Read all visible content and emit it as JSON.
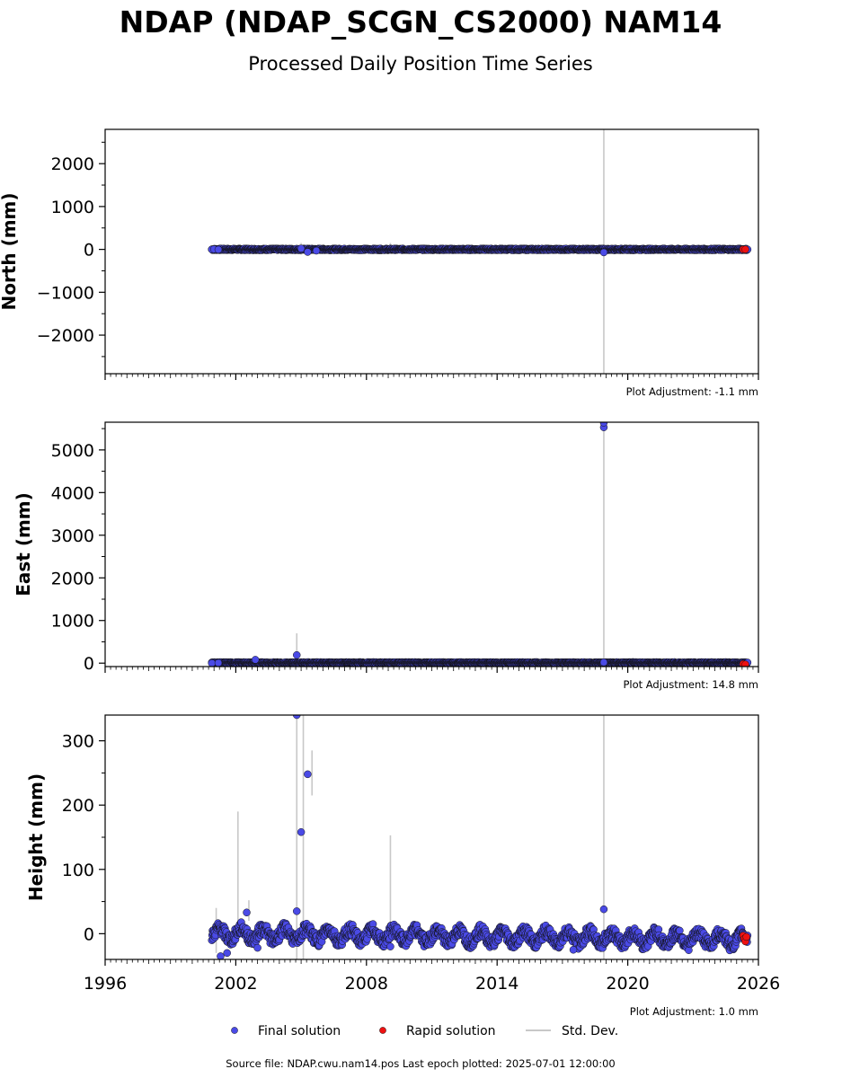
{
  "title": "NDAP (NDAP_SCGN_CS2000) NAM14",
  "subtitle": "Processed Daily Position Time Series",
  "footer": "Source file: NDAP.cwu.nam14.pos  Last epoch plotted: 2025-07-01 12:00:00",
  "legend": {
    "final": "Final solution",
    "rapid": "Rapid solution",
    "std": "Std. Dev."
  },
  "colors": {
    "final": "#4a4ae6",
    "rapid": "#ee1111",
    "std": "#c8c8c8",
    "dense_band": "#1a1a4a"
  },
  "chart_data": [
    {
      "type": "scatter",
      "ylabel": "North (mm)",
      "adjustment": "Plot Adjustment: -1.1 mm",
      "xlim": [
        1996,
        2026
      ],
      "ylim": [
        -2900,
        2800
      ],
      "yticks": [
        {
          "v": 2000,
          "label": "2000"
        },
        {
          "v": 1000,
          "label": "1000"
        },
        {
          "v": 0,
          "label": "0"
        },
        {
          "v": -1000,
          "label": "−1000"
        },
        {
          "v": -2000,
          "label": "−2000"
        }
      ],
      "band": [
        {
          "x0": 2000.9,
          "x1": 2025.5,
          "y": 0
        }
      ],
      "final_points": [
        {
          "x": 2000.9,
          "y": 0
        },
        {
          "x": 2001.0,
          "y": 5
        },
        {
          "x": 2001.2,
          "y": -5
        },
        {
          "x": 2005.0,
          "y": 20
        },
        {
          "x": 2005.3,
          "y": -60
        },
        {
          "x": 2005.7,
          "y": -30
        },
        {
          "x": 2018.9,
          "y": -70
        }
      ],
      "rapid_points": [
        {
          "x": 2025.3,
          "y": 0
        },
        {
          "x": 2025.4,
          "y": 0
        }
      ],
      "std_bars": [
        {
          "x": 2018.9,
          "y0": -2900,
          "y1": 2800
        },
        {
          "x": 2005.0,
          "y0": -120,
          "y1": 150
        },
        {
          "x": 2009.1,
          "y0": -20,
          "y1": 150
        }
      ]
    },
    {
      "type": "scatter",
      "ylabel": "East (mm)",
      "adjustment": "Plot Adjustment: 14.8 mm",
      "xlim": [
        1996,
        2026
      ],
      "ylim": [
        -80,
        5650
      ],
      "yticks": [
        {
          "v": 5000,
          "label": "5000"
        },
        {
          "v": 4000,
          "label": "4000"
        },
        {
          "v": 3000,
          "label": "3000"
        },
        {
          "v": 2000,
          "label": "2000"
        },
        {
          "v": 1000,
          "label": "1000"
        },
        {
          "v": 0,
          "label": "0"
        }
      ],
      "band": [
        {
          "x0": 2000.9,
          "x1": 2025.5,
          "y": 10
        }
      ],
      "final_points": [
        {
          "x": 2000.9,
          "y": 0
        },
        {
          "x": 2001.2,
          "y": 5
        },
        {
          "x": 2002.9,
          "y": 80
        },
        {
          "x": 2004.8,
          "y": 190
        },
        {
          "x": 2018.9,
          "y": 5530
        },
        {
          "x": 2018.9,
          "y": 5640
        },
        {
          "x": 2018.9,
          "y": 20
        }
      ],
      "rapid_points": [
        {
          "x": 2025.3,
          "y": -20
        },
        {
          "x": 2025.4,
          "y": -30
        }
      ],
      "std_bars": [
        {
          "x": 2018.9,
          "y0": -80,
          "y1": 5650
        },
        {
          "x": 2004.8,
          "y0": -50,
          "y1": 700
        }
      ]
    },
    {
      "type": "scatter",
      "ylabel": "Height (mm)",
      "adjustment": "Plot Adjustment: 1.0 mm",
      "xlim": [
        1996,
        2026
      ],
      "ylim": [
        -40,
        340
      ],
      "xticks": [
        {
          "v": 1996,
          "label": "1996"
        },
        {
          "v": 2002,
          "label": "2002"
        },
        {
          "v": 2008,
          "label": "2008"
        },
        {
          "v": 2014,
          "label": "2014"
        },
        {
          "v": 2020,
          "label": "2020"
        },
        {
          "v": 2026,
          "label": "2026"
        }
      ],
      "yticks": [
        {
          "v": 300,
          "label": "300"
        },
        {
          "v": 200,
          "label": "200"
        },
        {
          "v": 100,
          "label": "100"
        },
        {
          "v": 0,
          "label": "0"
        }
      ],
      "band": [
        {
          "x0": 2000.9,
          "x1": 2025.5,
          "y": 0
        }
      ],
      "final_points": [
        {
          "x": 2004.8,
          "y": 340
        },
        {
          "x": 2005.3,
          "y": 248
        },
        {
          "x": 2005.0,
          "y": 158
        },
        {
          "x": 2018.9,
          "y": 38
        },
        {
          "x": 2002.5,
          "y": 33
        },
        {
          "x": 2001.3,
          "y": -35
        },
        {
          "x": 2001.6,
          "y": -30
        },
        {
          "x": 2003.0,
          "y": -22
        },
        {
          "x": 2004.8,
          "y": 35
        },
        {
          "x": 2009.1,
          "y": -20
        },
        {
          "x": 2017.5,
          "y": -25
        }
      ],
      "rapid_points": [
        {
          "x": 2025.3,
          "y": -3
        },
        {
          "x": 2025.35,
          "y": -8
        },
        {
          "x": 2025.4,
          "y": -12
        },
        {
          "x": 2025.45,
          "y": -5
        }
      ],
      "std_bars": [
        {
          "x": 2018.9,
          "y0": -40,
          "y1": 340
        },
        {
          "x": 2004.8,
          "y0": -40,
          "y1": 340
        },
        {
          "x": 2005.1,
          "y0": -40,
          "y1": 340
        },
        {
          "x": 2005.5,
          "y0": 215,
          "y1": 285
        },
        {
          "x": 2002.1,
          "y0": -10,
          "y1": 190
        },
        {
          "x": 2009.1,
          "y0": -20,
          "y1": 153
        },
        {
          "x": 2002.6,
          "y0": 20,
          "y1": 52
        },
        {
          "x": 2001.1,
          "y0": -30,
          "y1": 40
        }
      ]
    }
  ]
}
